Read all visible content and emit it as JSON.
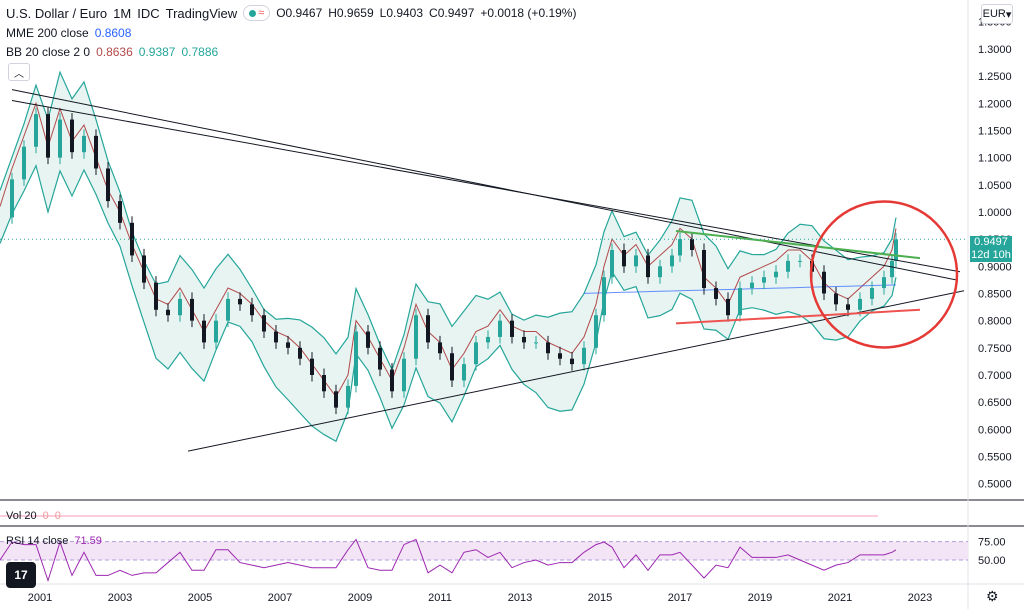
{
  "header": {
    "symbol": "U.S. Dollar / Euro",
    "interval": "1M",
    "source": "IDC",
    "platform": "TradingView",
    "open_label": "O",
    "open": "0.9467",
    "high_label": "H",
    "high": "0.9659",
    "low_label": "L",
    "low": "0.9403",
    "close_label": "C",
    "close": "0.9497",
    "change": "+0.0018 (+0.19%)"
  },
  "indicators": {
    "mme": {
      "label": "MME 200 close",
      "value": "0.8608",
      "color": "#2962ff"
    },
    "bb": {
      "label": "BB 20 close 2 0",
      "basis": "0.8636",
      "upper": "0.9387",
      "lower": "0.7886",
      "basis_color": "#b2494a",
      "band_color": "#26a69a"
    },
    "vol": {
      "label": "Vol 20",
      "v1": "0",
      "v2": "0"
    },
    "rsi": {
      "label": "RSI 14 close",
      "value": "71.59",
      "color": "#9c27b0"
    }
  },
  "currency_button": "EUR",
  "price_tag": {
    "value": "0.9497",
    "countdown": "12d 10h"
  },
  "colors": {
    "up": "#26a69a",
    "down": "#131722",
    "band_fill": "#e7f4f2",
    "rsi_fill": "#f3e5f5",
    "circle": "#e53935",
    "green_line": "#4caf50",
    "red_line": "#ef5350"
  },
  "chart_data": {
    "type": "candlestick",
    "title": "U.S. Dollar / Euro",
    "ylim": [
      0.47,
      1.39
    ],
    "y_ticks": [
      "1.3500",
      "1.3000",
      "1.2500",
      "1.2000",
      "1.1500",
      "1.1000",
      "1.0500",
      "1.0000",
      "0.9500",
      "0.9000",
      "0.8500",
      "0.8000",
      "0.7500",
      "0.7000",
      "0.6500",
      "0.6000",
      "0.5500",
      "0.5000"
    ],
    "x_ticks": [
      "2001",
      "2003",
      "2005",
      "2007",
      "2009",
      "2011",
      "2013",
      "2015",
      "2017",
      "2019",
      "2021",
      "2023"
    ],
    "series_close": [
      {
        "t": 2000.0,
        "v": 0.99
      },
      {
        "t": 2000.3,
        "v": 1.06
      },
      {
        "t": 2000.6,
        "v": 1.12
      },
      {
        "t": 2000.9,
        "v": 1.18
      },
      {
        "t": 2001.2,
        "v": 1.1
      },
      {
        "t": 2001.5,
        "v": 1.17
      },
      {
        "t": 2001.8,
        "v": 1.11
      },
      {
        "t": 2002.1,
        "v": 1.14
      },
      {
        "t": 2002.4,
        "v": 1.08
      },
      {
        "t": 2002.7,
        "v": 1.02
      },
      {
        "t": 2003.0,
        "v": 0.98
      },
      {
        "t": 2003.3,
        "v": 0.92
      },
      {
        "t": 2003.6,
        "v": 0.87
      },
      {
        "t": 2003.9,
        "v": 0.82
      },
      {
        "t": 2004.2,
        "v": 0.81
      },
      {
        "t": 2004.5,
        "v": 0.84
      },
      {
        "t": 2004.8,
        "v": 0.8
      },
      {
        "t": 2005.1,
        "v": 0.76
      },
      {
        "t": 2005.4,
        "v": 0.8
      },
      {
        "t": 2005.7,
        "v": 0.84
      },
      {
        "t": 2006.0,
        "v": 0.83
      },
      {
        "t": 2006.3,
        "v": 0.81
      },
      {
        "t": 2006.6,
        "v": 0.78
      },
      {
        "t": 2006.9,
        "v": 0.76
      },
      {
        "t": 2007.2,
        "v": 0.75
      },
      {
        "t": 2007.5,
        "v": 0.73
      },
      {
        "t": 2007.8,
        "v": 0.7
      },
      {
        "t": 2008.1,
        "v": 0.67
      },
      {
        "t": 2008.4,
        "v": 0.64
      },
      {
        "t": 2008.7,
        "v": 0.68
      },
      {
        "t": 2008.9,
        "v": 0.78
      },
      {
        "t": 2009.2,
        "v": 0.75
      },
      {
        "t": 2009.5,
        "v": 0.71
      },
      {
        "t": 2009.8,
        "v": 0.67
      },
      {
        "t": 2010.1,
        "v": 0.73
      },
      {
        "t": 2010.4,
        "v": 0.81
      },
      {
        "t": 2010.7,
        "v": 0.76
      },
      {
        "t": 2011.0,
        "v": 0.74
      },
      {
        "t": 2011.3,
        "v": 0.69
      },
      {
        "t": 2011.6,
        "v": 0.72
      },
      {
        "t": 2011.9,
        "v": 0.76
      },
      {
        "t": 2012.2,
        "v": 0.77
      },
      {
        "t": 2012.5,
        "v": 0.8
      },
      {
        "t": 2012.8,
        "v": 0.77
      },
      {
        "t": 2013.1,
        "v": 0.76
      },
      {
        "t": 2013.4,
        "v": 0.76
      },
      {
        "t": 2013.7,
        "v": 0.74
      },
      {
        "t": 2014.0,
        "v": 0.73
      },
      {
        "t": 2014.3,
        "v": 0.72
      },
      {
        "t": 2014.6,
        "v": 0.75
      },
      {
        "t": 2014.9,
        "v": 0.81
      },
      {
        "t": 2015.1,
        "v": 0.88
      },
      {
        "t": 2015.3,
        "v": 0.93
      },
      {
        "t": 2015.6,
        "v": 0.9
      },
      {
        "t": 2015.9,
        "v": 0.92
      },
      {
        "t": 2016.2,
        "v": 0.88
      },
      {
        "t": 2016.5,
        "v": 0.9
      },
      {
        "t": 2016.8,
        "v": 0.92
      },
      {
        "t": 2017.0,
        "v": 0.95
      },
      {
        "t": 2017.3,
        "v": 0.93
      },
      {
        "t": 2017.6,
        "v": 0.86
      },
      {
        "t": 2017.9,
        "v": 0.84
      },
      {
        "t": 2018.2,
        "v": 0.81
      },
      {
        "t": 2018.5,
        "v": 0.86
      },
      {
        "t": 2018.8,
        "v": 0.87
      },
      {
        "t": 2019.1,
        "v": 0.88
      },
      {
        "t": 2019.4,
        "v": 0.89
      },
      {
        "t": 2019.7,
        "v": 0.91
      },
      {
        "t": 2020.0,
        "v": 0.91
      },
      {
        "t": 2020.3,
        "v": 0.89
      },
      {
        "t": 2020.6,
        "v": 0.85
      },
      {
        "t": 2020.9,
        "v": 0.83
      },
      {
        "t": 2021.2,
        "v": 0.82
      },
      {
        "t": 2021.5,
        "v": 0.84
      },
      {
        "t": 2021.8,
        "v": 0.86
      },
      {
        "t": 2022.1,
        "v": 0.88
      },
      {
        "t": 2022.3,
        "v": 0.91
      },
      {
        "t": 2022.4,
        "v": 0.9497
      }
    ],
    "rsi_ticks": [
      "75.00",
      "50.00"
    ]
  }
}
